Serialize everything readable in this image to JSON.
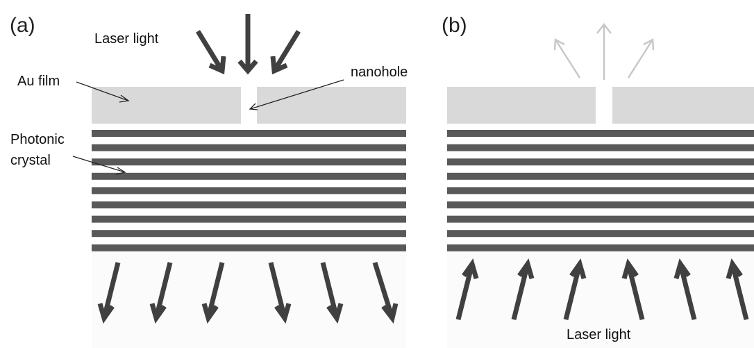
{
  "panel_a": {
    "label": "(a)",
    "laser_label": "Laser light",
    "au_film": "Au film",
    "nanohole": "nanohole",
    "photonic_crystal": [
      "Photonic",
      "crystal"
    ]
  },
  "panel_b": {
    "label": "(b)",
    "laser_label": "Laser light"
  }
}
